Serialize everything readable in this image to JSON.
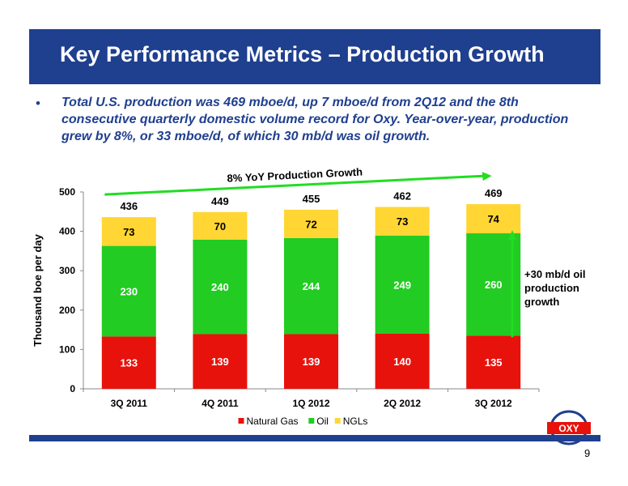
{
  "slide": {
    "title": "Key Performance Metrics – Production Growth",
    "bullet_marker": "•",
    "bullet_text": "Total U.S. production was 469 mboe/d, up 7 mboe/d from 2Q12 and the 8th consecutive quarterly domestic volume record for Oxy.  Year-over-year, production grew by 8%, or 33 mboe/d, of which 30 mb/d was oil growth.",
    "page_number": "9",
    "logo_text": "OXY"
  },
  "chart_data": {
    "type": "bar",
    "stacked": true,
    "categories": [
      "3Q 2011",
      "4Q 2011",
      "1Q 2012",
      "2Q 2012",
      "3Q 2012"
    ],
    "series": [
      {
        "name": "Natural Gas",
        "color": "#e8120c",
        "values": [
          133,
          139,
          139,
          140,
          135
        ]
      },
      {
        "name": "Oil",
        "color": "#22cc22",
        "values": [
          230,
          240,
          244,
          249,
          260
        ]
      },
      {
        "name": "NGLs",
        "color": "#ffd633",
        "values": [
          73,
          70,
          72,
          73,
          74
        ]
      }
    ],
    "totals": [
      436,
      449,
      455,
      462,
      469
    ],
    "title": "",
    "xlabel": "",
    "ylabel": "Thousand boe per day",
    "ylim": [
      0,
      500
    ],
    "yticks": [
      0,
      100,
      200,
      300,
      400,
      500
    ],
    "grid": false,
    "legend_position": "bottom",
    "annotations": {
      "trend_label": "8% YoY Production Growth",
      "oil_growth_label": [
        "+30 mb/d oil",
        "production",
        "growth"
      ],
      "arrow_color": "#22dd22"
    }
  }
}
